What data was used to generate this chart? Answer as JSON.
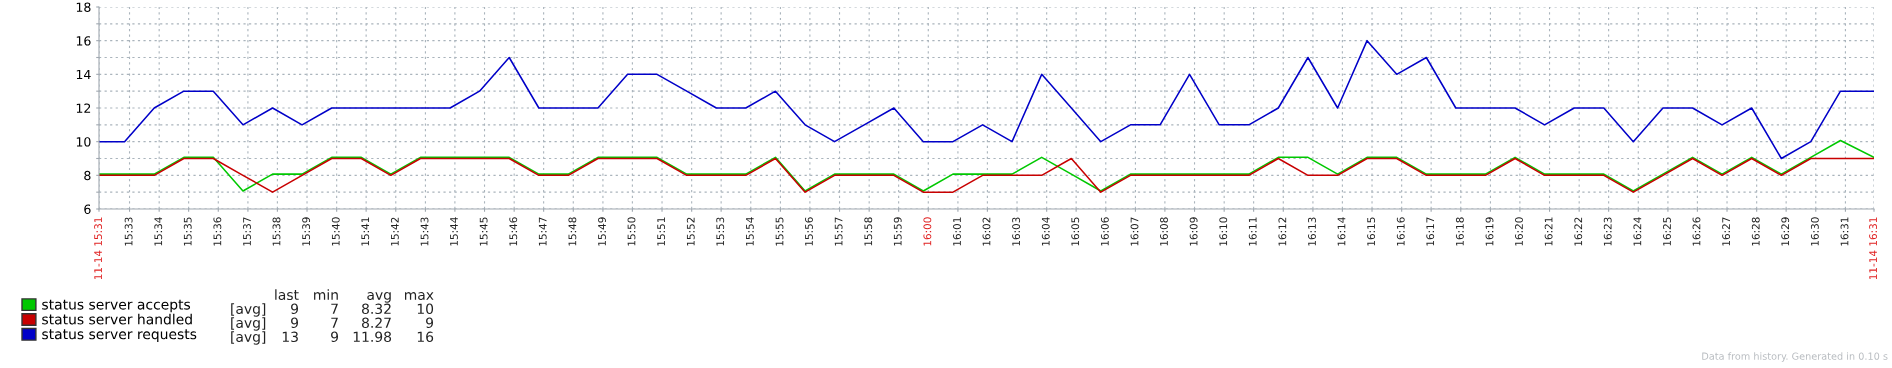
{
  "chart_data": {
    "type": "line",
    "x": [
      15.5328,
      15.5472,
      15.5639,
      15.5806,
      15.5972,
      15.6139,
      15.6306,
      15.6472,
      15.6639,
      15.6806,
      15.6972,
      15.7139,
      15.7306,
      15.7472,
      15.7639,
      15.7806,
      15.7972,
      15.8139,
      15.8306,
      15.8472,
      15.8639,
      15.8806,
      15.8972,
      15.9139,
      15.9306,
      15.9472,
      15.9639,
      15.9806,
      15.9972,
      16.0139,
      16.0306,
      16.0472,
      16.0639,
      16.0806,
      16.0972,
      16.1139,
      16.1306,
      16.1472,
      16.1639,
      16.1806,
      16.1972,
      16.2139,
      16.2306,
      16.2472,
      16.2639,
      16.2806,
      16.2972,
      16.3139,
      16.3306,
      16.3472,
      16.3639,
      16.3806,
      16.3972,
      16.4139,
      16.4306,
      16.4472,
      16.4639,
      16.4806,
      16.4972,
      16.5139,
      16.5328
    ],
    "series": [
      {
        "name": "status server accepts",
        "color": "#00c800",
        "values": [
          8,
          8,
          8,
          9,
          9,
          7,
          8,
          8,
          9,
          9,
          8,
          9,
          9,
          9,
          9,
          8,
          8,
          9,
          9,
          9,
          8,
          8,
          8,
          9,
          7,
          8,
          8,
          8,
          7,
          8,
          8,
          8,
          9,
          8,
          7,
          8,
          8,
          8,
          8,
          8,
          9,
          9,
          8,
          9,
          9,
          8,
          8,
          8,
          9,
          8,
          8,
          8,
          7,
          8,
          9,
          8,
          9,
          8,
          9,
          10,
          9
        ]
      },
      {
        "name": "status server handled",
        "color": "#c80000",
        "values": [
          8,
          8,
          8,
          9,
          9,
          8,
          7,
          8,
          9,
          9,
          8,
          9,
          9,
          9,
          9,
          8,
          8,
          9,
          9,
          9,
          8,
          8,
          8,
          9,
          7,
          8,
          8,
          8,
          7,
          7,
          8,
          8,
          8,
          9,
          7,
          8,
          8,
          8,
          8,
          8,
          9,
          8,
          8,
          9,
          9,
          8,
          8,
          8,
          9,
          8,
          8,
          8,
          7,
          8,
          9,
          8,
          9,
          8,
          9,
          9,
          9
        ]
      },
      {
        "name": "status server requests",
        "color": "#0000c8",
        "values": [
          10,
          10,
          12,
          13,
          13,
          11,
          12,
          11,
          12,
          12,
          12,
          12,
          12,
          13,
          15,
          12,
          12,
          12,
          14,
          14,
          13,
          12,
          12,
          13,
          11,
          10,
          11,
          12,
          10,
          10,
          11,
          10,
          14,
          12,
          10,
          11,
          11,
          14,
          11,
          11,
          12,
          15,
          12,
          16,
          14,
          15,
          12,
          12,
          12,
          11,
          12,
          12,
          10,
          12,
          12,
          11,
          12,
          9,
          10,
          13,
          13
        ]
      }
    ],
    "xlim": [
      15.5328,
      16.5328
    ],
    "xticks": [
      {
        "value": 15.5328,
        "label": "11-14 15:31"
      },
      {
        "value": 15.55,
        "label": "15:33"
      },
      {
        "value": 15.5667,
        "label": "15:34"
      },
      {
        "value": 15.5833,
        "label": "15:35"
      },
      {
        "value": 15.6,
        "label": "15:36"
      },
      {
        "value": 15.6167,
        "label": "15:37"
      },
      {
        "value": 15.6333,
        "label": "15:38"
      },
      {
        "value": 15.65,
        "label": "15:39"
      },
      {
        "value": 15.6667,
        "label": "15:40"
      },
      {
        "value": 15.6833,
        "label": "15:41"
      },
      {
        "value": 15.7,
        "label": "15:42"
      },
      {
        "value": 15.7167,
        "label": "15:43"
      },
      {
        "value": 15.7333,
        "label": "15:44"
      },
      {
        "value": 15.75,
        "label": "15:45"
      },
      {
        "value": 15.7667,
        "label": "15:46"
      },
      {
        "value": 15.7833,
        "label": "15:47"
      },
      {
        "value": 15.8,
        "label": "15:48"
      },
      {
        "value": 15.8167,
        "label": "15:49"
      },
      {
        "value": 15.8333,
        "label": "15:50"
      },
      {
        "value": 15.85,
        "label": "15:51"
      },
      {
        "value": 15.8667,
        "label": "15:52"
      },
      {
        "value": 15.8833,
        "label": "15:53"
      },
      {
        "value": 15.9,
        "label": "15:54"
      },
      {
        "value": 15.9167,
        "label": "15:55"
      },
      {
        "value": 15.9333,
        "label": "15:56"
      },
      {
        "value": 15.95,
        "label": "15:57"
      },
      {
        "value": 15.9667,
        "label": "15:58"
      },
      {
        "value": 15.9833,
        "label": "15:59"
      },
      {
        "value": 16,
        "label": "16:00"
      },
      {
        "value": 16.0167,
        "label": "16:01"
      },
      {
        "value": 16.0333,
        "label": "16:02"
      },
      {
        "value": 16.05,
        "label": "16:03"
      },
      {
        "value": 16.0667,
        "label": "16:04"
      },
      {
        "value": 16.0833,
        "label": "16:05"
      },
      {
        "value": 16.1,
        "label": "16:06"
      },
      {
        "value": 16.1167,
        "label": "16:07"
      },
      {
        "value": 16.1333,
        "label": "16:08"
      },
      {
        "value": 16.15,
        "label": "16:09"
      },
      {
        "value": 16.1667,
        "label": "16:10"
      },
      {
        "value": 16.1833,
        "label": "16:11"
      },
      {
        "value": 16.2,
        "label": "16:12"
      },
      {
        "value": 16.2167,
        "label": "16:13"
      },
      {
        "value": 16.2333,
        "label": "16:14"
      },
      {
        "value": 16.25,
        "label": "16:15"
      },
      {
        "value": 16.2667,
        "label": "16:16"
      },
      {
        "value": 16.2833,
        "label": "16:17"
      },
      {
        "value": 16.3,
        "label": "16:18"
      },
      {
        "value": 16.3167,
        "label": "16:19"
      },
      {
        "value": 16.3333,
        "label": "16:20"
      },
      {
        "value": 16.35,
        "label": "16:21"
      },
      {
        "value": 16.3667,
        "label": "16:22"
      },
      {
        "value": 16.3833,
        "label": "16:23"
      },
      {
        "value": 16.4,
        "label": "16:24"
      },
      {
        "value": 16.4167,
        "label": "16:25"
      },
      {
        "value": 16.4333,
        "label": "16:26"
      },
      {
        "value": 16.45,
        "label": "16:27"
      },
      {
        "value": 16.4667,
        "label": "16:28"
      },
      {
        "value": 16.4833,
        "label": "16:29"
      },
      {
        "value": 16.5,
        "label": "16:30"
      },
      {
        "value": 16.5167,
        "label": "16:31"
      },
      {
        "value": 16.5328,
        "label": "11-14 16:31"
      }
    ],
    "ylim": [
      6,
      18
    ],
    "yticks": [
      6,
      {
        "value": 7,
        "label": null
      },
      8,
      {
        "value": 9,
        "label": null
      },
      10,
      {
        "value": 11,
        "label": null
      },
      12,
      {
        "value": 13,
        "label": null
      },
      14,
      {
        "value": 15,
        "label": null
      },
      16,
      {
        "value": 17,
        "label": null
      },
      18
    ],
    "grid": true,
    "line_style": "solid",
    "marker": "none",
    "legend": "bottom left",
    "annotations": [
      "last",
      "min",
      "avg",
      "max",
      "[avg]",
      "9",
      "7",
      "8.32",
      "10",
      "[avg]",
      "9",
      "7",
      "8.27",
      "9",
      "[avg]",
      "13",
      "9",
      "11.98",
      "16",
      "Data from history. Generated in 0.10 s"
    ]
  }
}
